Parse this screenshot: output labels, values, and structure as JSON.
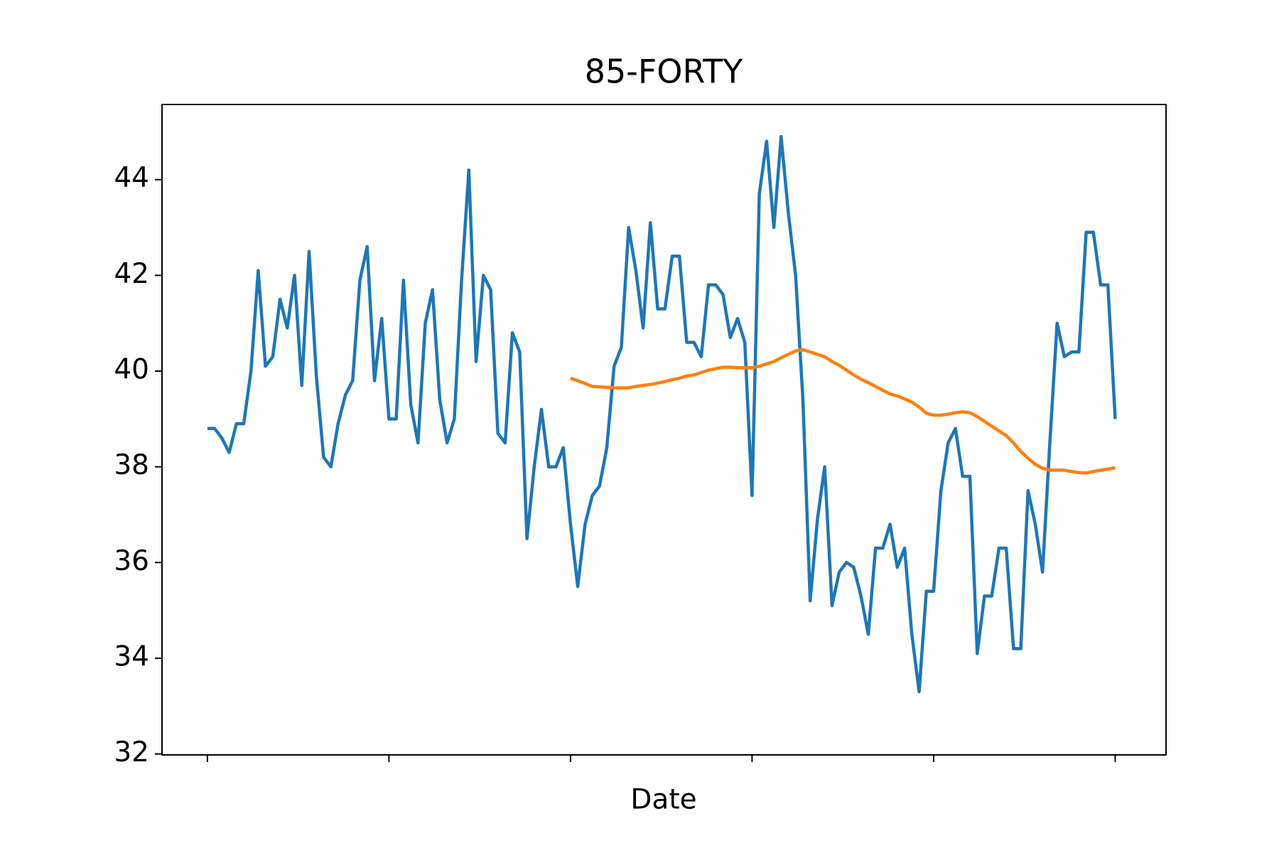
{
  "chart_data": {
    "type": "line",
    "title": "85-FORTY",
    "x_label": "Date",
    "x": [
      0,
      4,
      8,
      12,
      16,
      20,
      24,
      28,
      32,
      36,
      40,
      44,
      48,
      52,
      56,
      60,
      64,
      68,
      72,
      76,
      80,
      84,
      88,
      92,
      96,
      100,
      104,
      108,
      112,
      116,
      120,
      124,
      128,
      132,
      136,
      140,
      144,
      148,
      152,
      156,
      160,
      164,
      168,
      172,
      176,
      180,
      184,
      188,
      192,
      196,
      200,
      204,
      208,
      212,
      216,
      220,
      224,
      228,
      232,
      236,
      240,
      244,
      248,
      252,
      256,
      260,
      264,
      268,
      272,
      276,
      280,
      284,
      288,
      292,
      296,
      300,
      304,
      308,
      312,
      316,
      320,
      324,
      328,
      332,
      336,
      340,
      344,
      348,
      352,
      356,
      360,
      364,
      368,
      372,
      376,
      380,
      384,
      388,
      392,
      396,
      400,
      404,
      408,
      412,
      416,
      420,
      424,
      428,
      432,
      436,
      440,
      444,
      448,
      452,
      456,
      460,
      464,
      468,
      472,
      476,
      480,
      484,
      488,
      492,
      496,
      500
    ],
    "series": [
      {
        "color": "#1f77b4",
        "values": [
          38.8,
          38.8,
          38.6,
          38.3,
          38.9,
          38.9,
          40.0,
          42.1,
          40.1,
          40.3,
          41.5,
          40.9,
          42.0,
          39.7,
          42.5,
          39.9,
          38.2,
          38.0,
          38.9,
          39.5,
          39.8,
          41.9,
          42.6,
          39.8,
          41.1,
          39.0,
          39.0,
          41.9,
          39.3,
          38.5,
          41.0,
          41.7,
          39.4,
          38.5,
          39.0,
          41.9,
          44.2,
          40.2,
          42.0,
          41.7,
          38.7,
          38.5,
          40.8,
          40.4,
          36.5,
          38.0,
          39.2,
          38.0,
          38.0,
          38.4,
          36.8,
          35.5,
          36.8,
          37.4,
          37.6,
          38.4,
          40.1,
          40.5,
          43.0,
          42.1,
          40.9,
          43.1,
          41.3,
          41.3,
          42.4,
          42.4,
          40.6,
          40.6,
          40.3,
          41.8,
          41.8,
          41.6,
          40.7,
          41.1,
          40.6,
          37.4,
          43.7,
          44.8,
          43.0,
          44.9,
          43.3,
          42.0,
          39.4,
          35.2,
          36.9,
          38.0,
          35.1,
          35.8,
          36.0,
          35.9,
          35.3,
          34.5,
          36.3,
          36.3,
          36.8,
          35.9,
          36.3,
          34.5,
          33.3,
          35.4,
          35.4,
          37.5,
          38.5,
          38.8,
          37.8,
          37.8,
          34.1,
          35.3,
          35.3,
          36.3,
          36.3,
          34.2,
          34.2,
          37.5,
          36.8,
          35.8,
          38.5,
          41.0,
          40.3,
          40.4,
          40.4,
          42.9,
          42.9,
          41.8,
          41.8,
          39.0
        ]
      },
      {
        "color": "#ff7f0e",
        "values": [
          null,
          null,
          null,
          null,
          null,
          null,
          null,
          null,
          null,
          null,
          null,
          null,
          null,
          null,
          null,
          null,
          null,
          null,
          null,
          null,
          null,
          null,
          null,
          null,
          null,
          null,
          null,
          null,
          null,
          null,
          null,
          null,
          null,
          null,
          null,
          null,
          null,
          null,
          null,
          null,
          null,
          null,
          null,
          null,
          null,
          null,
          null,
          null,
          null,
          null,
          39.85,
          39.8,
          39.74,
          39.68,
          39.67,
          39.66,
          39.65,
          39.65,
          39.65,
          39.68,
          39.7,
          39.72,
          39.75,
          39.78,
          39.82,
          39.85,
          39.9,
          39.92,
          39.97,
          40.02,
          40.05,
          40.08,
          40.08,
          40.07,
          40.07,
          40.07,
          40.1,
          40.15,
          40.2,
          40.28,
          40.35,
          40.42,
          40.45,
          40.4,
          40.35,
          40.3,
          40.2,
          40.12,
          40.02,
          39.92,
          39.83,
          39.76,
          39.68,
          39.6,
          39.52,
          39.48,
          39.42,
          39.35,
          39.25,
          39.12,
          39.08,
          39.08,
          39.1,
          39.13,
          39.15,
          39.13,
          39.05,
          38.95,
          38.85,
          38.75,
          38.65,
          38.5,
          38.32,
          38.18,
          38.05,
          37.97,
          37.93,
          37.93,
          37.93,
          37.9,
          37.88,
          37.87,
          37.9,
          37.93,
          37.95,
          37.98
        ]
      }
    ],
    "xlim": [
      -25,
      528
    ],
    "xticks": [
      0,
      100,
      200,
      300,
      400,
      500
    ],
    "ylim": [
      31.98,
      45.57
    ],
    "yticks": [
      32,
      34,
      36,
      38,
      40,
      42,
      44
    ]
  }
}
